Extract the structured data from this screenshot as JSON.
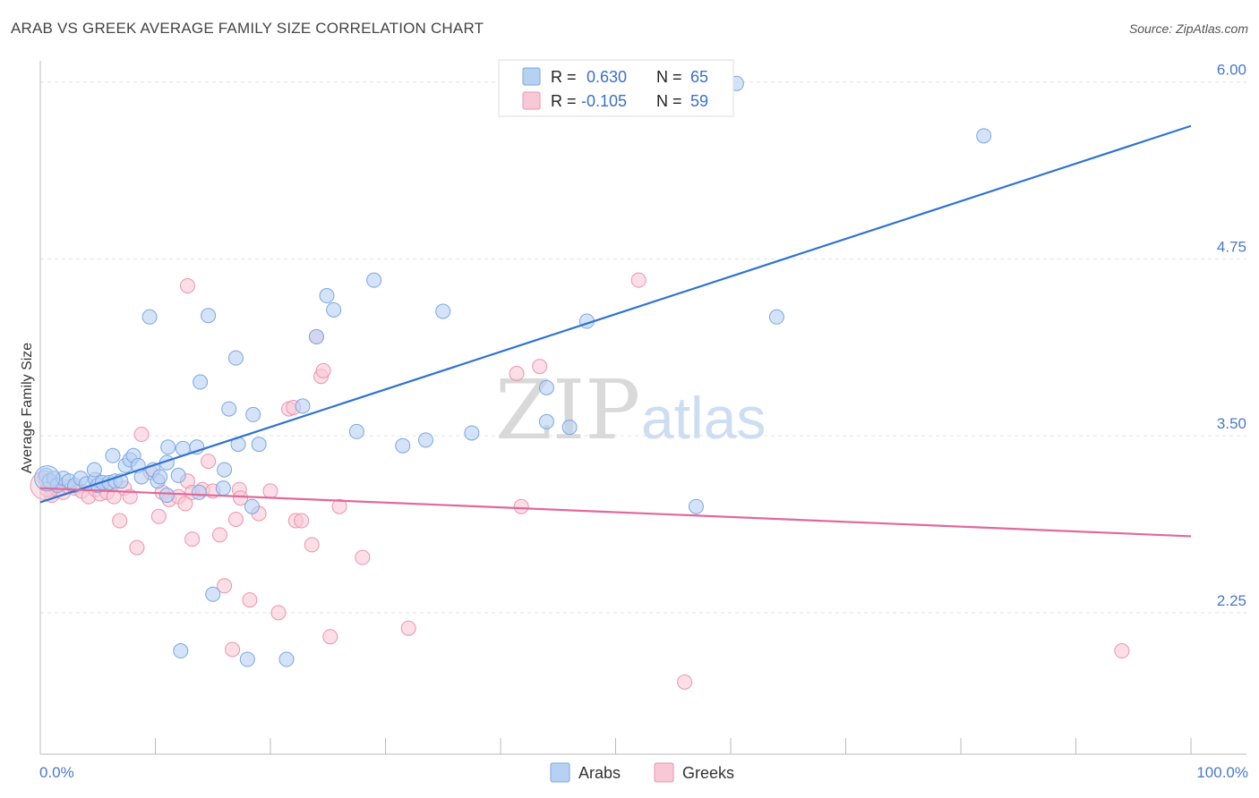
{
  "title": "ARAB VS GREEK AVERAGE FAMILY SIZE CORRELATION CHART",
  "source": "Source: ZipAtlas.com",
  "watermark": {
    "zip": "ZIP",
    "atlas": "atlas"
  },
  "legend": {
    "r_label": "R =",
    "n_label": "N =",
    "arabs": {
      "r": "0.630",
      "n": "65"
    },
    "greeks": {
      "r": "-0.105",
      "n": "59"
    }
  },
  "bottom_legend": {
    "arabs": "Arabs",
    "greeks": "Greeks"
  },
  "colors": {
    "arabs_fill": "#b7d1f3",
    "arabs_stroke": "#7aa7e0",
    "arabs_line": "#2f72d3",
    "greeks_fill": "#f8c8d6",
    "greeks_stroke": "#ec93b0",
    "greeks_line": "#e0699a",
    "grid": "#e3e3e3",
    "axis_text": "#4a78c9"
  },
  "chart_data": {
    "type": "scatter",
    "title": "ARAB VS GREEK AVERAGE FAMILY SIZE CORRELATION CHART",
    "xlabel": "",
    "ylabel": "Average Family Size",
    "xlim": [
      0,
      100
    ],
    "ylim": [
      1.25,
      6.15
    ],
    "x_tick_labels": [
      "0.0%",
      "100.0%"
    ],
    "y_ticks": [
      2.25,
      3.5,
      4.75,
      6.0
    ],
    "y_tick_labels": [
      "2.25",
      "3.50",
      "4.75",
      "6.00"
    ],
    "grid": true,
    "legend_position": "top-center",
    "series": [
      {
        "name": "Arabs",
        "r": 0.63,
        "n": 65,
        "trend": {
          "x": [
            0,
            100
          ],
          "y": [
            3.03,
            5.69
          ]
        },
        "points": [
          [
            0.5,
            3.22
          ],
          [
            0.8,
            3.18
          ],
          [
            1.2,
            3.2
          ],
          [
            1.5,
            3.15
          ],
          [
            2,
            3.2
          ],
          [
            2.5,
            3.18
          ],
          [
            3,
            3.15
          ],
          [
            3.5,
            3.2
          ],
          [
            4,
            3.16
          ],
          [
            4.8,
            3.19
          ],
          [
            5,
            3.15
          ],
          [
            4.7,
            3.26
          ],
          [
            5.4,
            3.17
          ],
          [
            6,
            3.17
          ],
          [
            6.3,
            3.36
          ],
          [
            6.5,
            3.18
          ],
          [
            7,
            3.18
          ],
          [
            7.4,
            3.29
          ],
          [
            7.8,
            3.33
          ],
          [
            8.1,
            3.36
          ],
          [
            8.5,
            3.29
          ],
          [
            8.8,
            3.21
          ],
          [
            9.8,
            3.26
          ],
          [
            10.2,
            3.18
          ],
          [
            10.4,
            3.21
          ],
          [
            11,
            3.31
          ],
          [
            11.1,
            3.42
          ],
          [
            12,
            3.22
          ],
          [
            12.4,
            3.41
          ],
          [
            13.6,
            3.42
          ],
          [
            9.5,
            4.34
          ],
          [
            13.9,
            3.88
          ],
          [
            14.6,
            4.35
          ],
          [
            15.9,
            3.13
          ],
          [
            16,
            3.26
          ],
          [
            16.4,
            3.69
          ],
          [
            17,
            4.05
          ],
          [
            17.2,
            3.44
          ],
          [
            18.4,
            3.0
          ],
          [
            18.5,
            3.65
          ],
          [
            19,
            3.44
          ],
          [
            22.8,
            3.71
          ],
          [
            24,
            4.2
          ],
          [
            24.9,
            4.49
          ],
          [
            25.5,
            4.39
          ],
          [
            27.5,
            3.53
          ],
          [
            29,
            4.6
          ],
          [
            31.5,
            3.43
          ],
          [
            33.5,
            3.47
          ],
          [
            35,
            4.38
          ],
          [
            37.5,
            3.52
          ],
          [
            44,
            3.6
          ],
          [
            44,
            3.84
          ],
          [
            46,
            3.56
          ],
          [
            47.5,
            4.31
          ],
          [
            57,
            3.0
          ],
          [
            12.2,
            1.98
          ],
          [
            15,
            2.38
          ],
          [
            18,
            1.92
          ],
          [
            21.4,
            1.92
          ],
          [
            11,
            3.08
          ],
          [
            13.8,
            3.1
          ],
          [
            60.5,
            5.99
          ],
          [
            82,
            5.62
          ],
          [
            64,
            4.34
          ]
        ]
      },
      {
        "name": "Greeks",
        "r": -0.105,
        "n": 59,
        "trend": {
          "x": [
            0,
            100
          ],
          "y": [
            3.13,
            2.79
          ]
        },
        "points": [
          [
            0.4,
            3.2
          ],
          [
            1,
            3.08
          ],
          [
            1.5,
            3.12
          ],
          [
            2,
            3.1
          ],
          [
            2.5,
            3.14
          ],
          [
            3,
            3.13
          ],
          [
            3.6,
            3.11
          ],
          [
            4.2,
            3.07
          ],
          [
            4.8,
            3.12
          ],
          [
            5.2,
            3.09
          ],
          [
            5.8,
            3.1
          ],
          [
            6.4,
            3.07
          ],
          [
            6.9,
            2.9
          ],
          [
            7.3,
            3.13
          ],
          [
            7.8,
            3.07
          ],
          [
            8.4,
            2.71
          ],
          [
            8.8,
            3.51
          ],
          [
            9.6,
            3.24
          ],
          [
            10.3,
            2.93
          ],
          [
            10.6,
            3.1
          ],
          [
            11.2,
            3.05
          ],
          [
            12,
            3.07
          ],
          [
            12.6,
            3.02
          ],
          [
            12.8,
            3.18
          ],
          [
            13.2,
            3.1
          ],
          [
            14.1,
            3.12
          ],
          [
            14.6,
            3.32
          ],
          [
            15.6,
            2.8
          ],
          [
            16,
            2.44
          ],
          [
            17,
            2.91
          ],
          [
            17.3,
            3.12
          ],
          [
            18.2,
            2.34
          ],
          [
            19,
            2.95
          ],
          [
            20,
            3.11
          ],
          [
            20.7,
            2.25
          ],
          [
            21.6,
            3.69
          ],
          [
            22.2,
            2.9
          ],
          [
            22.7,
            2.9
          ],
          [
            23.6,
            2.73
          ],
          [
            24,
            4.2
          ],
          [
            24.4,
            3.92
          ],
          [
            24.6,
            3.96
          ],
          [
            25.2,
            2.08
          ],
          [
            26,
            3.0
          ],
          [
            28,
            2.64
          ],
          [
            32,
            2.14
          ],
          [
            41.4,
            3.94
          ],
          [
            43.4,
            3.99
          ],
          [
            41.8,
            3.0
          ],
          [
            12.8,
            4.56
          ],
          [
            15,
            3.11
          ],
          [
            17.4,
            3.06
          ],
          [
            22,
            3.7
          ],
          [
            52,
            4.6
          ],
          [
            94,
            1.98
          ],
          [
            56,
            1.76
          ],
          [
            13.2,
            2.77
          ],
          [
            16.7,
            1.99
          ],
          [
            0.6,
            3.12
          ]
        ]
      }
    ]
  }
}
